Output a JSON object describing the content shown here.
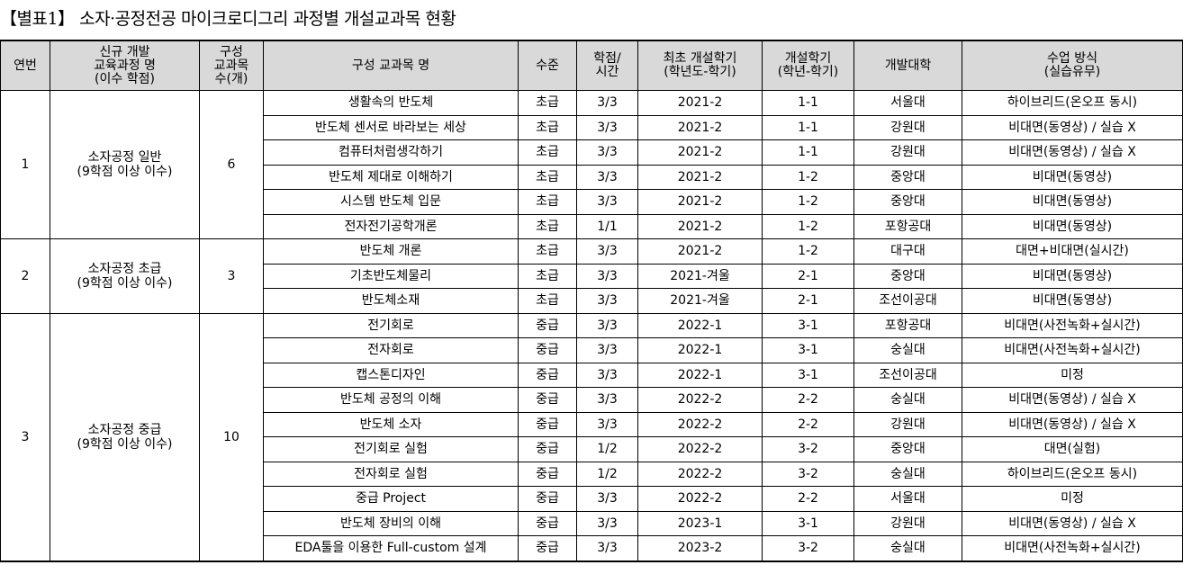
{
  "title": "【별표1】 소자·공정전공 마이크로디그리 과정별 개설교과목 현황",
  "headers": [
    "연번",
    "신규 개발\n교육과정 명\n(이수 학점)",
    "구성\n교과목\n수(개)",
    "구성 교과목 명",
    "수준",
    "학점/\n시간",
    "최초 개설학기\n(학년도-학기)",
    "개설학기\n(학년-학기)",
    "개발대학",
    "수업 방식\n(실습유무)"
  ],
  "groups": [
    {
      "no": "1",
      "course": "소자공정 일반\n(9학점 이상 이수)",
      "count": "6",
      "rows": [
        [
          "생활속의 반도체",
          "초급",
          "3/3",
          "2021-2",
          "1-1",
          "서울대",
          "하이브리드(온오프 동시)"
        ],
        [
          "반도체 센서로 바라보는 세상",
          "초급",
          "3/3",
          "2021-2",
          "1-1",
          "강원대",
          "비대면(동영상) / 실습 X"
        ],
        [
          "컴퓨터처럼생각하기",
          "초급",
          "3/3",
          "2021-2",
          "1-1",
          "강원대",
          "비대면(동영상) / 실습 X"
        ],
        [
          "반도체 제대로 이해하기",
          "초급",
          "3/3",
          "2021-2",
          "1-2",
          "중앙대",
          "비대면(동영상)"
        ],
        [
          "시스템 반도체 입문",
          "초급",
          "3/3",
          "2021-2",
          "1-2",
          "중앙대",
          "비대면(동영상)"
        ],
        [
          "전자전기공학개론",
          "초급",
          "1/1",
          "2021-2",
          "1-2",
          "포항공대",
          "비대면(동영상)"
        ]
      ]
    },
    {
      "no": "2",
      "course": "소자공정 초급\n(9학점 이상 이수)",
      "count": "3",
      "rows": [
        [
          "반도체 개론",
          "초급",
          "3/3",
          "2021-2",
          "1-2",
          "대구대",
          "대면+비대면(실시간)"
        ],
        [
          "기초반도체물리",
          "초급",
          "3/3",
          "2021-겨울",
          "2-1",
          "중앙대",
          "비대면(동영상)"
        ],
        [
          "반도체소재",
          "초급",
          "3/3",
          "2021-겨울",
          "2-1",
          "조선이공대",
          "비대면(동영상)"
        ]
      ]
    },
    {
      "no": "3",
      "course": "소자공정 중급\n(9학점 이상 이수)",
      "count": "10",
      "rows": [
        [
          "전기회로",
          "중급",
          "3/3",
          "2022-1",
          "3-1",
          "포항공대",
          "비대면(사전녹화+실시간)"
        ],
        [
          "전자회로",
          "중급",
          "3/3",
          "2022-1",
          "3-1",
          "숭실대",
          "비대면(사전녹화+실시간)"
        ],
        [
          "캡스톤디자인",
          "중급",
          "3/3",
          "2022-1",
          "3-1",
          "조선이공대",
          "미정"
        ],
        [
          "반도체 공정의 이해",
          "중급",
          "3/3",
          "2022-2",
          "2-2",
          "숭실대",
          "비대면(동영상) / 실습 X"
        ],
        [
          "반도체 소자",
          "중급",
          "3/3",
          "2022-2",
          "2-2",
          "강원대",
          "비대면(동영상) / 실습 X"
        ],
        [
          "전기회로 실험",
          "중급",
          "1/2",
          "2022-2",
          "3-2",
          "중앙대",
          "대면(실험)"
        ],
        [
          "전자회로 실험",
          "중급",
          "1/2",
          "2022-2",
          "3-2",
          "숭실대",
          "하이브리드(온오프 동시)"
        ],
        [
          "중급 Project",
          "중급",
          "3/3",
          "2022-2",
          "2-2",
          "서울대",
          "미정"
        ],
        [
          "반도체 장비의 이해",
          "중급",
          "3/3",
          "2023-1",
          "3-1",
          "강원대",
          "비대면(동영상) / 실습 X"
        ],
        [
          "EDA툴을 이용한 Full-custom 설계",
          "중급",
          "3/3",
          "2023-2",
          "3-2",
          "숭실대",
          "비대면(사전녹화+실시간)"
        ]
      ]
    }
  ]
}
